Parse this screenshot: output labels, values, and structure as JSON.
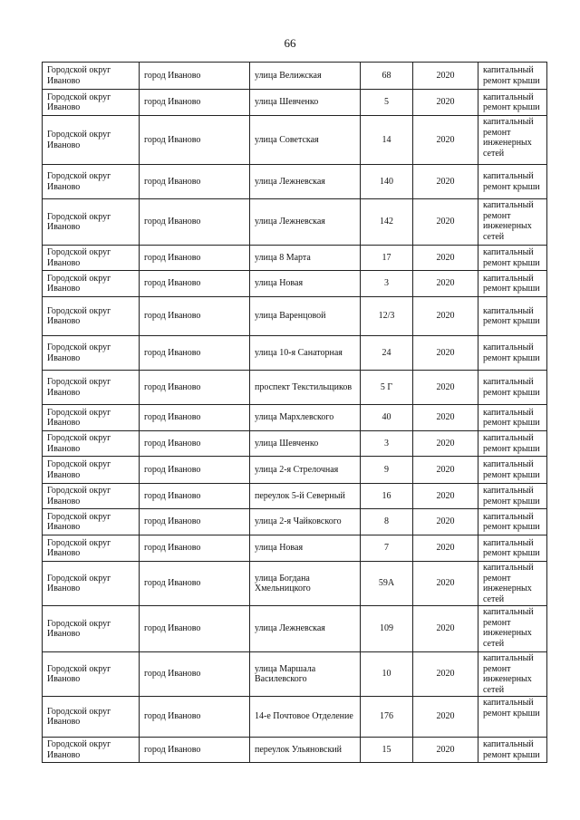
{
  "page_number": "66",
  "rows": [
    {
      "district": "Городской округ Иваново",
      "city": "город Иваново",
      "street": "улица Велижская",
      "house": "68",
      "year": "2020",
      "work": "капитальный ремонт крыши"
    },
    {
      "district": "Городской округ Иваново",
      "city": "город Иваново",
      "street": "улица Шевченко",
      "house": "5",
      "year": "2020",
      "work": "капитальный ремонт крыши"
    },
    {
      "district": "Городской округ Иваново",
      "city": "город Иваново",
      "street": "улица Советская",
      "house": "14",
      "year": "2020",
      "work": "капитальный ремонт инженерных сетей"
    },
    {
      "district": "Городской округ Иваново",
      "city": "город Иваново",
      "street": "улица Лежневская",
      "house": "140",
      "year": "2020",
      "work": "капитальный ремонт крыши"
    },
    {
      "district": "Городской округ Иваново",
      "city": "город Иваново",
      "street": "улица Лежневская",
      "house": "142",
      "year": "2020",
      "work": "капитальный ремонт инженерных сетей"
    },
    {
      "district": "Городской округ Иваново",
      "city": "город Иваново",
      "street": "улица 8 Марта",
      "house": "17",
      "year": "2020",
      "work": "капитальный ремонт крыши"
    },
    {
      "district": "Городской округ Иваново",
      "city": "город Иваново",
      "street": "улица Новая",
      "house": "3",
      "year": "2020",
      "work": "капитальный ремонт крыши"
    },
    {
      "district": "Городской округ Иваново",
      "city": "город Иваново",
      "street": "улица Варенцовой",
      "house": "12/3",
      "year": "2020",
      "work": "капитальный ремонт крыши"
    },
    {
      "district": "Городской округ Иваново",
      "city": "город Иваново",
      "street": "улица 10-я Санаторная",
      "house": "24",
      "year": "2020",
      "work": "капитальный ремонт крыши"
    },
    {
      "district": "Городской округ Иваново",
      "city": "город Иваново",
      "street": "проспект Текстильщиков",
      "house": "5 Г",
      "year": "2020",
      "work": "капитальный ремонт крыши"
    },
    {
      "district": "Городской округ Иваново",
      "city": "город Иваново",
      "street": "улица Мархлевского",
      "house": "40",
      "year": "2020",
      "work": "капитальный ремонт крыши"
    },
    {
      "district": "Городской округ Иваново",
      "city": "город Иваново",
      "street": "улица Шевченко",
      "house": "3",
      "year": "2020",
      "work": "капитальный ремонт крыши"
    },
    {
      "district": "Городской округ Иваново",
      "city": "город Иваново",
      "street": "улица 2-я Стрелочная",
      "house": "9",
      "year": "2020",
      "work": "капитальный ремонт крыши"
    },
    {
      "district": "Городской округ Иваново",
      "city": "город Иваново",
      "street": "переулок 5-й Северный",
      "house": "16",
      "year": "2020",
      "work": "капитальный ремонт крыши"
    },
    {
      "district": "Городской округ Иваново",
      "city": "город Иваново",
      "street": "улица 2-я Чайковского",
      "house": "8",
      "year": "2020",
      "work": "капитальный ремонт крыши"
    },
    {
      "district": "Городской округ Иваново",
      "city": "город Иваново",
      "street": "улица Новая",
      "house": "7",
      "year": "2020",
      "work": "капитальный ремонт крыши"
    },
    {
      "district": "Городской округ Иваново",
      "city": "город Иваново",
      "street": "улица Богдана Хмельницкого",
      "house": "59А",
      "year": "2020",
      "work": "капитальный ремонт инженерных сетей"
    },
    {
      "district": "Городской округ Иваново",
      "city": "город Иваново",
      "street": "улица Лежневская",
      "house": "109",
      "year": "2020",
      "work": "капитальный ремонт инженерных сетей"
    },
    {
      "district": "Городской округ Иваново",
      "city": "город Иваново",
      "street": "улица Маршала Василевского",
      "house": "10",
      "year": "2020",
      "work": "капитальный ремонт инженерных сетей"
    },
    {
      "district": "Городской округ Иваново",
      "city": "город Иваново",
      "street": "14-е Почтовое Отделение",
      "house": "176",
      "year": "2020",
      "work": "капитальный ремонт крыши"
    },
    {
      "district": "Городской округ Иваново",
      "city": "город Иваново",
      "street": "переулок Ульяновский",
      "house": "15",
      "year": "2020",
      "work": "капитальный ремонт крыши"
    }
  ]
}
